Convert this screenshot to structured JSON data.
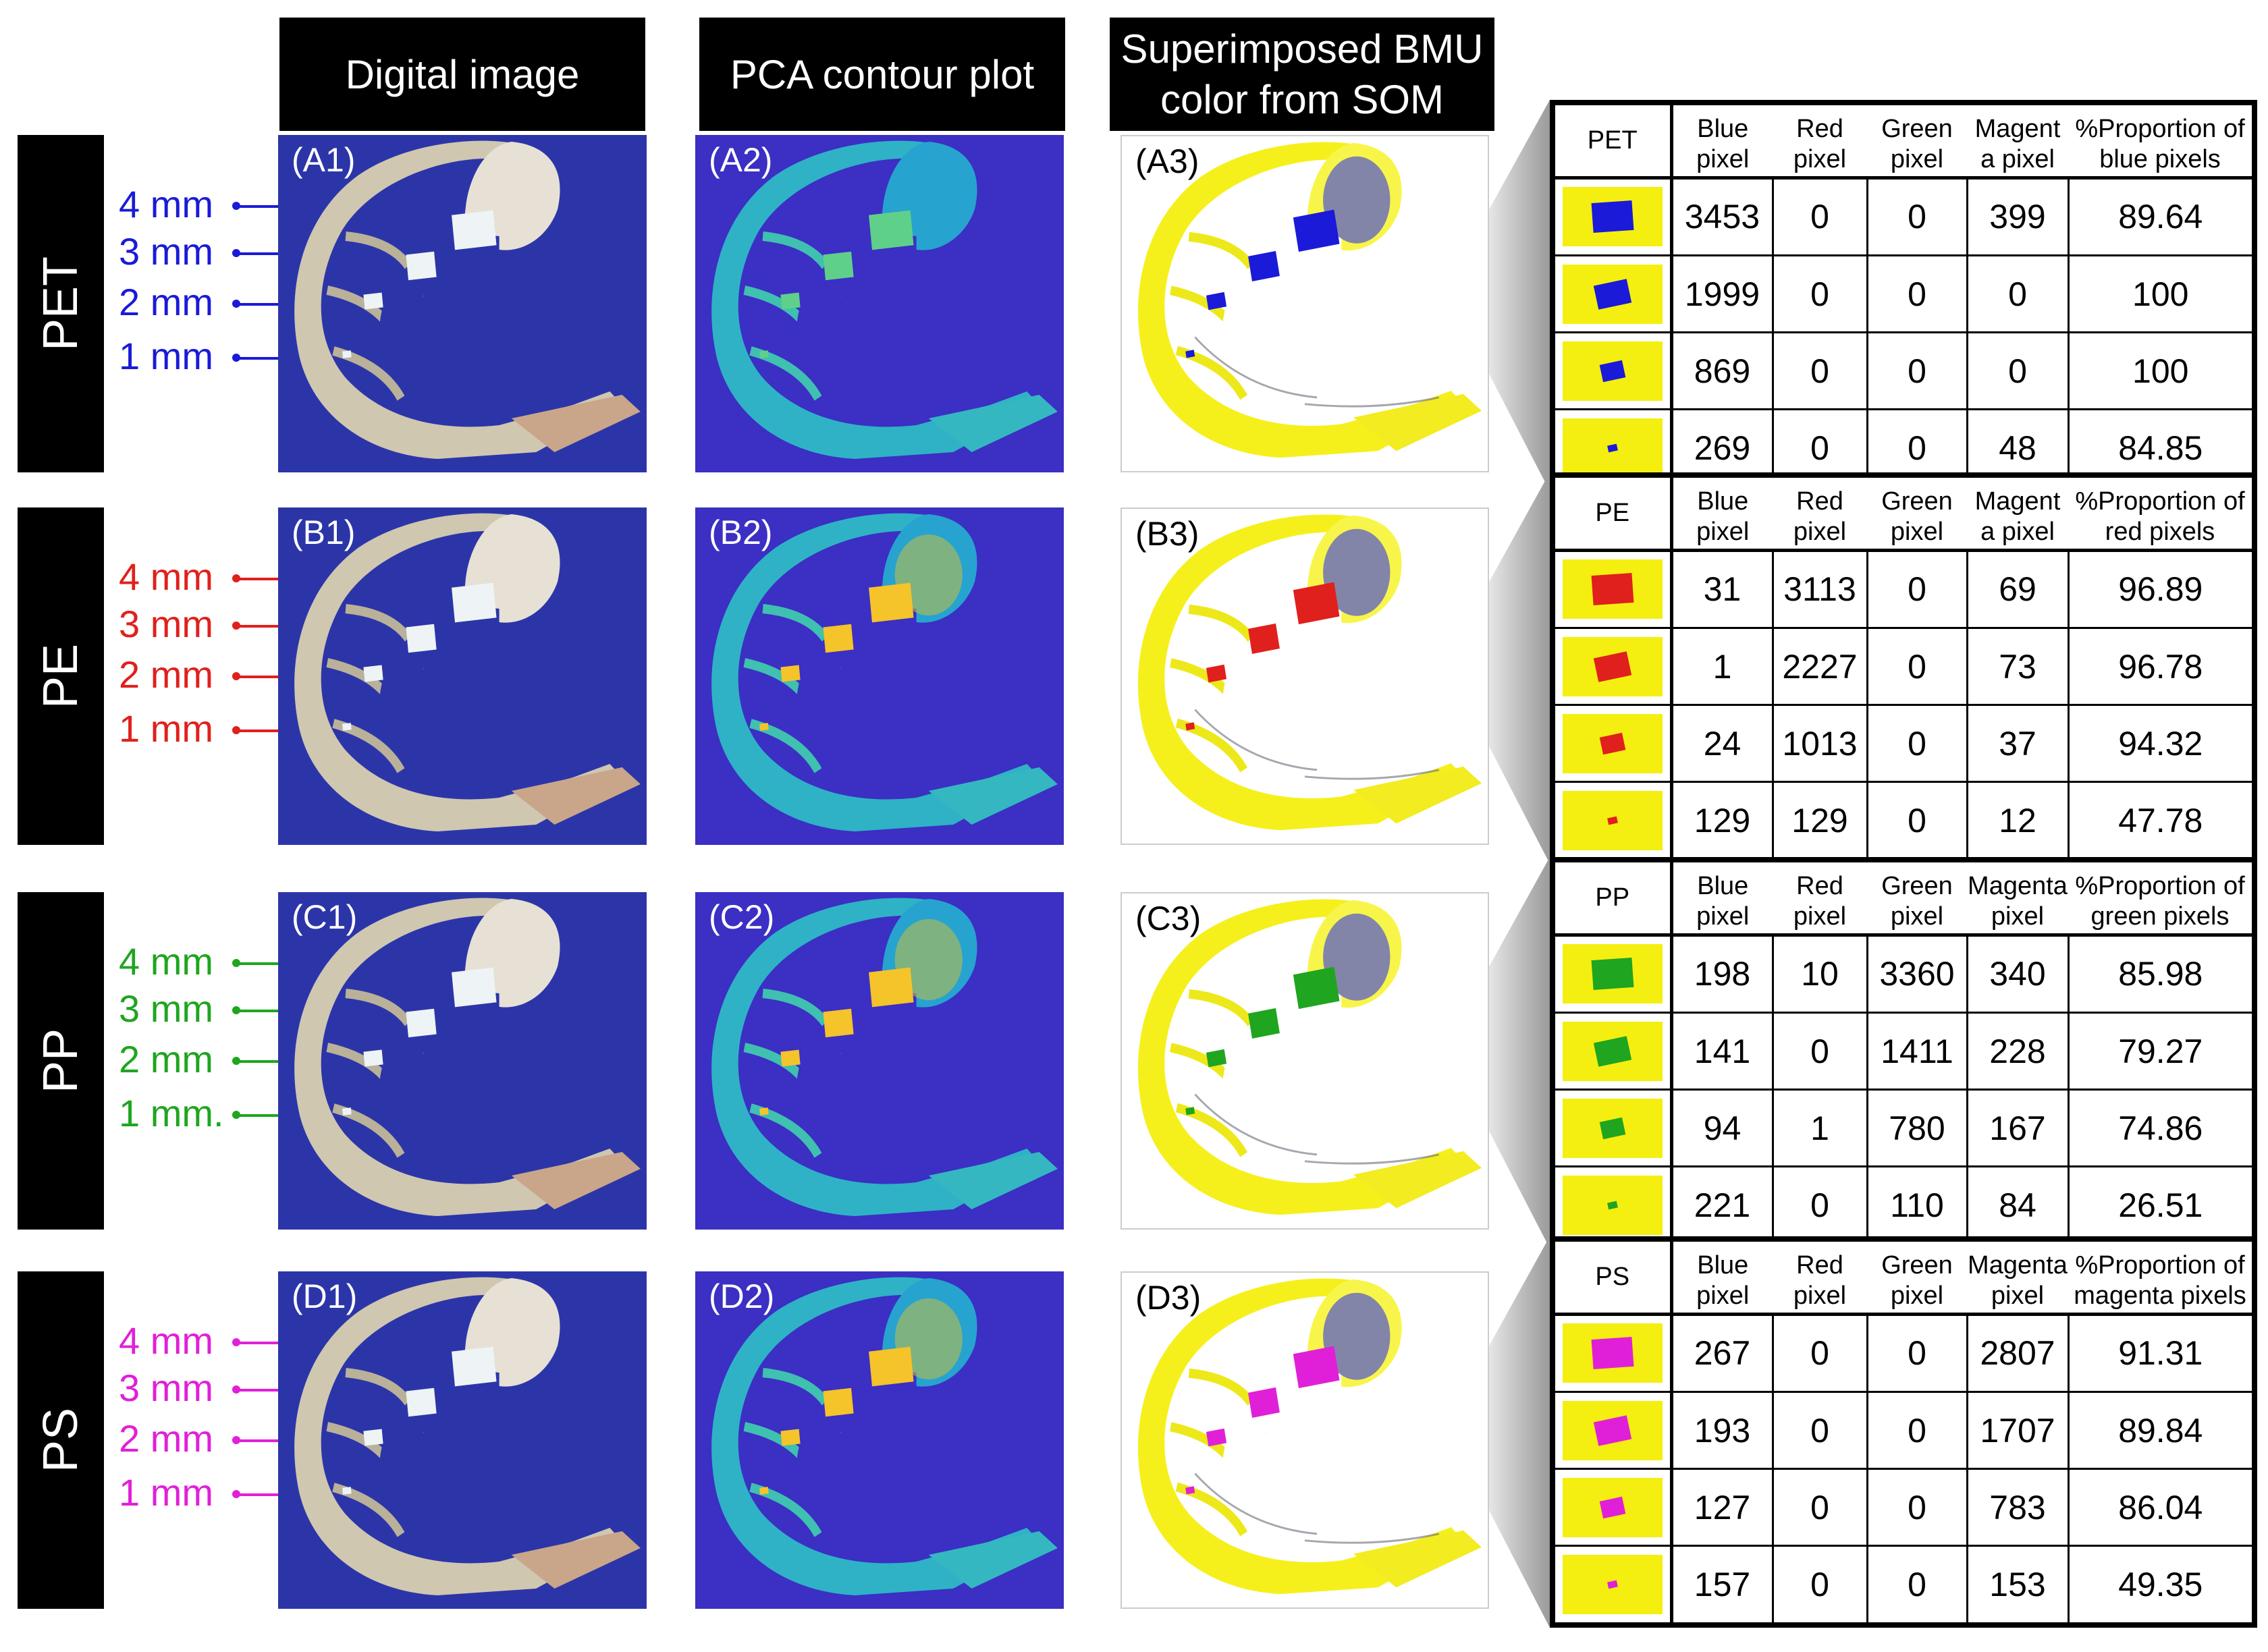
{
  "column_headers": {
    "digital": "Digital image",
    "pca": "PCA contour plot",
    "som_line1": "Superimposed BMU",
    "som_line2": "color from SOM"
  },
  "rows": [
    {
      "polymer": "PET",
      "color": "#1a1ad8",
      "labels": {
        "digital": "(A1)",
        "pca": "(A2)",
        "som": "(A3)"
      },
      "mm": [
        "4 mm",
        "3 mm",
        "2 mm",
        "1 mm"
      ],
      "table": {
        "name": "PET",
        "headers": [
          "Blue pixel",
          "Red pixel",
          "Green pixel",
          "Magent a pixel",
          "%Proportion of blue pixels"
        ],
        "rows": [
          [
            "3453",
            "0",
            "0",
            "399",
            "89.64"
          ],
          [
            "1999",
            "0",
            "0",
            "0",
            "100"
          ],
          [
            "869",
            "0",
            "0",
            "0",
            "100"
          ],
          [
            "269",
            "0",
            "0",
            "48",
            "84.85"
          ]
        ]
      }
    },
    {
      "polymer": "PE",
      "color": "#e0201c",
      "labels": {
        "digital": "(B1)",
        "pca": "(B2)",
        "som": "(B3)"
      },
      "mm": [
        "4 mm",
        "3 mm",
        "2 mm",
        "1 mm"
      ],
      "table": {
        "name": "PE",
        "headers": [
          "Blue pixel",
          "Red pixel",
          "Green pixel",
          "Magent a pixel",
          "%Proportion of red pixels"
        ],
        "rows": [
          [
            "31",
            "3113",
            "0",
            "69",
            "96.89"
          ],
          [
            "1",
            "2227",
            "0",
            "73",
            "96.78"
          ],
          [
            "24",
            "1013",
            "0",
            "37",
            "94.32"
          ],
          [
            "129",
            "129",
            "0",
            "12",
            "47.78"
          ]
        ]
      }
    },
    {
      "polymer": "PP",
      "color": "#1fa51f",
      "labels": {
        "digital": "(C1)",
        "pca": "(C2)",
        "som": "(C3)"
      },
      "mm": [
        "4 mm",
        "3 mm",
        "2 mm",
        "1 mm."
      ],
      "table": {
        "name": "PP",
        "headers": [
          "Blue pixel",
          "Red pixel",
          "Green pixel",
          "Magenta pixel",
          "%Proportion of green pixels"
        ],
        "rows": [
          [
            "198",
            "10",
            "3360",
            "340",
            "85.98"
          ],
          [
            "141",
            "0",
            "1411",
            "228",
            "79.27"
          ],
          [
            "94",
            "1",
            "780",
            "167",
            "74.86"
          ],
          [
            "221",
            "0",
            "110",
            "84",
            "26.51"
          ]
        ]
      }
    },
    {
      "polymer": "PS",
      "color": "#e020d8",
      "labels": {
        "digital": "(D1)",
        "pca": "(D2)",
        "som": "(D3)"
      },
      "mm": [
        "4 mm",
        "3 mm",
        "2 mm",
        "1 mm"
      ],
      "table": {
        "name": "PS",
        "headers": [
          "Blue pixel",
          "Red pixel",
          "Green pixel",
          "Magenta pixel",
          "%Proportion of magenta pixels"
        ],
        "rows": [
          [
            "267",
            "0",
            "0",
            "2807",
            "91.31"
          ],
          [
            "193",
            "0",
            "0",
            "1707",
            "89.84"
          ],
          [
            "127",
            "0",
            "0",
            "783",
            "86.04"
          ],
          [
            "157",
            "0",
            "0",
            "153",
            "49.35"
          ]
        ]
      }
    }
  ]
}
